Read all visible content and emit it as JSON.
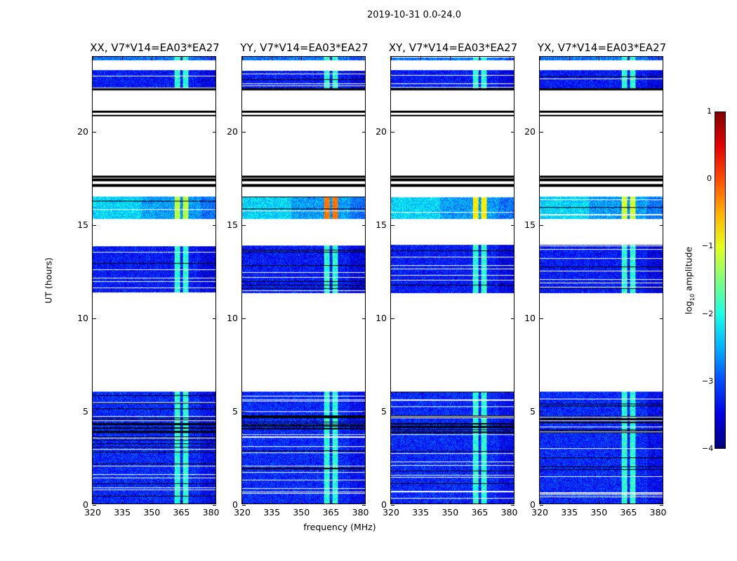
{
  "chart_data": {
    "type": "heatmap",
    "title": "2019-10-31 0.0-24.0",
    "xlabel": "frequency (MHz)",
    "ylabel": "UT (hours)",
    "xlim": [
      320,
      383
    ],
    "ylim": [
      0,
      24
    ],
    "xticks": [
      "320",
      "335",
      "350",
      "365",
      "380"
    ],
    "xtick_values": [
      320,
      335,
      350,
      365,
      380
    ],
    "yticks": [
      "0",
      "5",
      "10",
      "15",
      "20"
    ],
    "ytick_values": [
      0,
      5,
      10,
      15,
      20
    ],
    "panels": [
      {
        "title": "XX, V7*V14=EA03*EA27",
        "rfi_peak": -1.2
      },
      {
        "title": "YY, V7*V14=EA03*EA27",
        "rfi_peak": -0.2
      },
      {
        "title": "XY, V7*V14=EA03*EA27",
        "rfi_peak": -0.8
      },
      {
        "title": "YX, V7*V14=EA03*EA27",
        "rfi_peak": -1.1
      }
    ],
    "data_bands_hours": [
      {
        "start": 0.0,
        "end": 6.0,
        "level": -3.2
      },
      {
        "start": 11.3,
        "end": 13.9,
        "level": -3.3
      },
      {
        "start": 15.3,
        "end": 16.5,
        "level": -2.6
      },
      {
        "start": 22.3,
        "end": 23.3,
        "level": -3.3
      },
      {
        "start": 23.8,
        "end": 24.0,
        "level": -2.8
      }
    ],
    "rfi_channels_mhz": [
      [
        362,
        364.5
      ],
      [
        366,
        369
      ]
    ],
    "colorbar": {
      "label": "log10 amplitude",
      "label_main": "log",
      "label_sub": "10",
      "label_rest": " amplitude",
      "range": [
        -4,
        1
      ],
      "ticks": [
        "1",
        "0",
        "−1",
        "−2",
        "−3",
        "−4"
      ],
      "tick_values": [
        1,
        0,
        -1,
        -2,
        -3,
        -4
      ],
      "colormap": "jet"
    }
  }
}
